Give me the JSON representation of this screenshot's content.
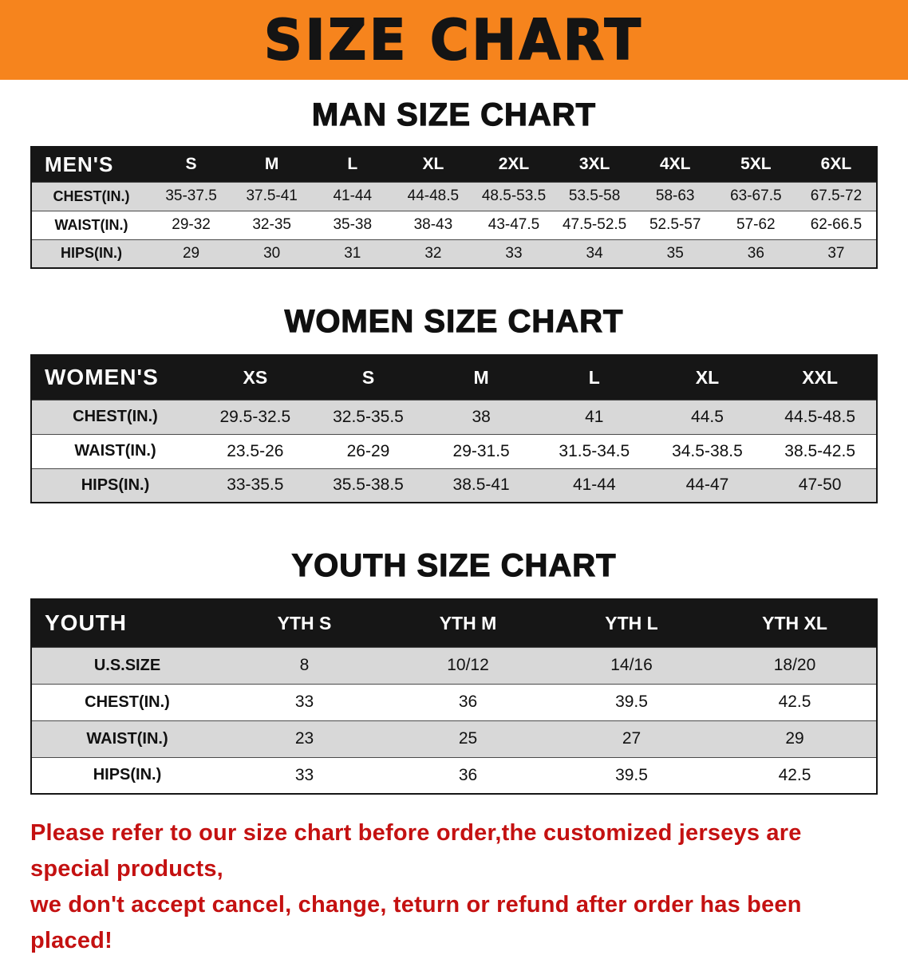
{
  "banner": {
    "title": "SIZE CHART",
    "bg_color": "#f6841d",
    "text_color": "#141414"
  },
  "sections": [
    {
      "heading": "MAN SIZE CHART",
      "table": {
        "header": [
          "MEN'S",
          "S",
          "M",
          "L",
          "XL",
          "2XL",
          "3XL",
          "4XL",
          "5XL",
          "6XL"
        ],
        "rows": [
          [
            "CHEST(IN.)",
            "35-37.5",
            "37.5-41",
            "41-44",
            "44-48.5",
            "48.5-53.5",
            "53.5-58",
            "58-63",
            "63-67.5",
            "67.5-72"
          ],
          [
            "WAIST(IN.)",
            "29-32",
            "32-35",
            "35-38",
            "38-43",
            "43-47.5",
            "47.5-52.5",
            "52.5-57",
            "57-62",
            "62-66.5"
          ],
          [
            "HIPS(IN.)",
            "29",
            "30",
            "31",
            "32",
            "33",
            "34",
            "35",
            "36",
            "37"
          ]
        ]
      }
    },
    {
      "heading": "WOMEN SIZE CHART",
      "table": {
        "header": [
          "WOMEN'S",
          "XS",
          "S",
          "M",
          "L",
          "XL",
          "XXL"
        ],
        "rows": [
          [
            "CHEST(IN.)",
            "29.5-32.5",
            "32.5-35.5",
            "38",
            "41",
            "44.5",
            "44.5-48.5"
          ],
          [
            "WAIST(IN.)",
            "23.5-26",
            "26-29",
            "29-31.5",
            "31.5-34.5",
            "34.5-38.5",
            "38.5-42.5"
          ],
          [
            "HIPS(IN.)",
            "33-35.5",
            "35.5-38.5",
            "38.5-41",
            "41-44",
            "44-47",
            "47-50"
          ]
        ]
      }
    },
    {
      "heading": "YOUTH SIZE CHART",
      "table": {
        "header": [
          "YOUTH",
          "YTH S",
          "YTH M",
          "YTH L",
          "YTH XL"
        ],
        "rows": [
          [
            "U.S.SIZE",
            "8",
            "10/12",
            "14/16",
            "18/20"
          ],
          [
            "CHEST(IN.)",
            "33",
            "36",
            "39.5",
            "42.5"
          ],
          [
            "WAIST(IN.)",
            "23",
            "25",
            "27",
            "29"
          ],
          [
            "HIPS(IN.)",
            "33",
            "36",
            "39.5",
            "42.5"
          ]
        ]
      }
    }
  ],
  "disclaimer": {
    "line1": "Please refer to our size chart before order,the customized jerseys are special products,",
    "line2": "we don't accept cancel, change, teturn or refund after order has been placed!",
    "text_color": "#c41111"
  }
}
